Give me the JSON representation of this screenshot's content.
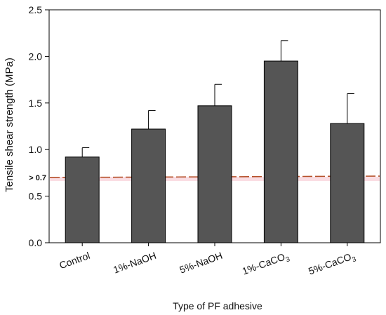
{
  "chart_data": {
    "type": "bar",
    "title": "",
    "xlabel": "Type of PF adhesive",
    "ylabel": "Tensile shear strength (MPa)",
    "ylim": [
      0,
      2.5
    ],
    "yticks": [
      "0.0",
      "0.5",
      "1.0",
      "1.5",
      "2.0",
      "2.5"
    ],
    "categories": [
      {
        "base": "Control",
        "sub": ""
      },
      {
        "base": "1%-NaOH",
        "sub": ""
      },
      {
        "base": "5%-NaOH",
        "sub": ""
      },
      {
        "base": "1%-CaCO",
        "sub": "3"
      },
      {
        "base": "5%-CaCO",
        "sub": "3"
      }
    ],
    "values": [
      0.92,
      1.22,
      1.47,
      1.95,
      1.28
    ],
    "errors": [
      0.1,
      0.2,
      0.23,
      0.22,
      0.32
    ],
    "reference": {
      "value": 0.7,
      "label": "> 0.7",
      "color": "#b5502a",
      "band_color": "#f7c6d0"
    },
    "bar_color": "#555555",
    "grid": false,
    "legend": "none"
  }
}
